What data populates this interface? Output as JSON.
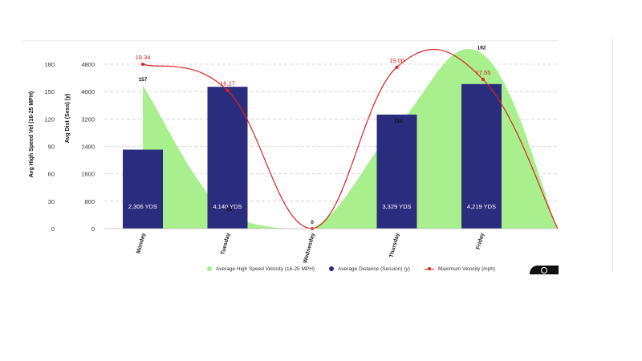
{
  "chart_data": {
    "type": "bar",
    "categories": [
      "Monday",
      "Tuesday",
      "Wednesday",
      "Thursday",
      "Friday"
    ],
    "left_axis_outer": {
      "title": "Avg High Speed Vel (16-25 MPH)",
      "ticks": [
        "0",
        "30",
        "60",
        "90",
        "120",
        "150",
        "180"
      ],
      "ylim": [
        0,
        180
      ]
    },
    "left_axis_inner": {
      "title": "Avg Dist (Sess) (y)",
      "ticks": [
        "0",
        "800",
        "1600",
        "2400",
        "3200",
        "4000",
        "4800"
      ],
      "ylim": [
        0,
        4800
      ]
    },
    "series": [
      {
        "name": "Average High Speed Velocity (16-25 MPH)",
        "type": "area",
        "axis": "outer",
        "color": "#a9ef8e",
        "values": [
          157,
          15,
          0,
          112,
          192
        ],
        "labels": [
          "157",
          "15",
          "0",
          "112",
          "192"
        ]
      },
      {
        "name": "Average Distance (Session) (y)",
        "type": "bar",
        "axis": "inner",
        "color": "#2a2c7e",
        "values": [
          2306,
          4140,
          0,
          3329,
          4219
        ],
        "labels": [
          "2,306 YDS",
          "4,140 YDS",
          "",
          "3,329 YDS",
          "4,219 YDS"
        ]
      },
      {
        "name": "Maximum Velocity (mph)",
        "type": "line",
        "axis": "outer",
        "color": "#dd2222",
        "values": [
          19.34,
          16.27,
          0,
          19.0,
          17.55
        ],
        "labels": [
          "19.34",
          "16.27",
          "",
          "19.00",
          "17.55"
        ]
      }
    ],
    "grid": true,
    "legend_position": "bottom"
  }
}
